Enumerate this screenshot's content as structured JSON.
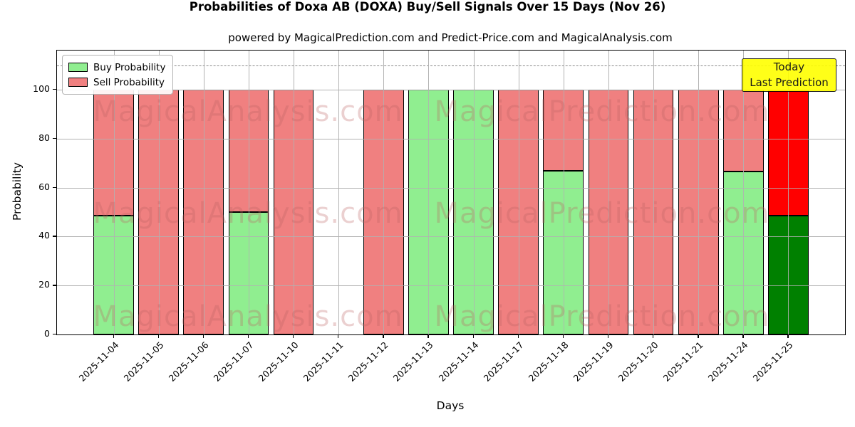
{
  "chart_data": {
    "type": "bar",
    "stacked": true,
    "title": "Probabilities of Doxa AB (DOXA) Buy/Sell Signals Over 15 Days (Nov 26)",
    "subtitle": "powered by MagicalPrediction.com and Predict-Price.com and MagicalAnalysis.com",
    "xlabel": "Days",
    "ylabel": "Probability",
    "ylim": [
      0,
      116
    ],
    "yticks": [
      0,
      20,
      40,
      60,
      80,
      100
    ],
    "grid": true,
    "dashed_line_y": 110,
    "categories": [
      "2025-11-04",
      "2025-11-05",
      "2025-11-06",
      "2025-11-07",
      "2025-11-10",
      "2025-11-11",
      "2025-11-12",
      "2025-11-13",
      "2025-11-14",
      "2025-11-17",
      "2025-11-18",
      "2025-11-19",
      "2025-11-20",
      "2025-11-21",
      "2025-11-24",
      "2025-11-25"
    ],
    "series": [
      {
        "name": "Buy Probability",
        "color": "#90ee90",
        "today_color": "#008000",
        "values": [
          48.5,
          0,
          0,
          50,
          0,
          null,
          0,
          100,
          100,
          0,
          67,
          0,
          0,
          0,
          66.5,
          48.5
        ]
      },
      {
        "name": "Sell Probability",
        "color": "#f08080",
        "today_color": "#ff0000",
        "values": [
          51.5,
          100,
          100,
          50,
          100,
          null,
          100,
          0,
          0,
          100,
          33,
          100,
          100,
          100,
          33.5,
          51.5
        ]
      }
    ],
    "today_index": 15,
    "legend": {
      "position": "upper-left",
      "entries": [
        "Buy Probability",
        "Sell Probability"
      ]
    },
    "annotation": {
      "lines": [
        "Today",
        "Last Prediction"
      ],
      "bg_color": "#ffff00"
    },
    "watermarks": [
      "MagicalAnalysis.com",
      "MagicalPrediction.com"
    ],
    "colors": {
      "grid": "#b2b2b2",
      "dashed_line": "#8a8a8a",
      "bar_edge": "#000000"
    }
  }
}
